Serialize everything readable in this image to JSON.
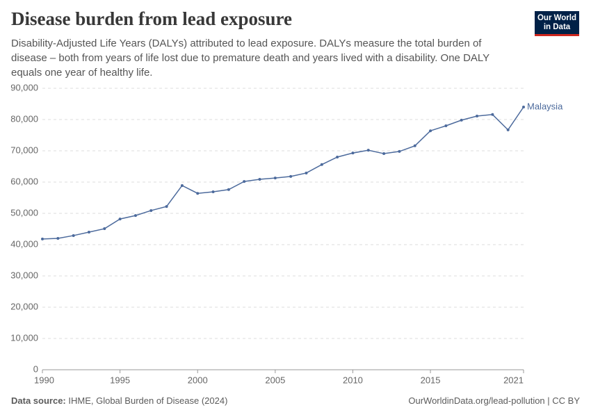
{
  "logo": [
    "Our World",
    "in Data"
  ],
  "chart_data": {
    "type": "line",
    "title": "Disease burden from lead exposure",
    "subtitle": "Disability-Adjusted Life Years (DALYs) attributed to lead exposure. DALYs measure the total burden of disease – both from years of life lost due to premature death and years lived with a disability. One DALY equals one year of healthy life.",
    "source_label": "Data source:",
    "source": "IHME, Global Burden of Disease (2024)",
    "footer": "OurWorldinData.org/lead-pollution | CC BY",
    "x": [
      1990,
      1991,
      1992,
      1993,
      1994,
      1995,
      1996,
      1997,
      1998,
      1999,
      2000,
      2001,
      2002,
      2003,
      2004,
      2005,
      2006,
      2007,
      2008,
      2009,
      2010,
      2011,
      2012,
      2013,
      2014,
      2015,
      2016,
      2017,
      2018,
      2019,
      2020,
      2021
    ],
    "series": [
      {
        "name": "Malaysia",
        "color": "#4c6a9c",
        "values": [
          41800,
          42000,
          42900,
          44000,
          45100,
          48200,
          49300,
          50900,
          52200,
          58900,
          56400,
          56900,
          57600,
          60200,
          60900,
          61300,
          61800,
          62900,
          65600,
          68000,
          69300,
          70200,
          69100,
          69800,
          71600,
          76400,
          78000,
          79800,
          81100,
          81600,
          76700,
          84000
        ]
      }
    ],
    "xlim": [
      1990,
      2021
    ],
    "xticks": [
      1990,
      1995,
      2000,
      2005,
      2010,
      2015,
      2021
    ],
    "ylim": [
      0,
      90000
    ],
    "yticks": [
      0,
      {
        "value": 10000,
        "label": "10,000"
      },
      {
        "value": 20000,
        "label": "20,000"
      },
      {
        "value": 30000,
        "label": "30,000"
      },
      {
        "value": 40000,
        "label": "40,000"
      },
      {
        "value": 50000,
        "label": "50,000"
      },
      {
        "value": 60000,
        "label": "60,000"
      },
      {
        "value": 70000,
        "label": "70,000"
      },
      {
        "value": 80000,
        "label": "80,000"
      },
      {
        "value": 90000,
        "label": "90,000"
      }
    ],
    "grid": true
  }
}
